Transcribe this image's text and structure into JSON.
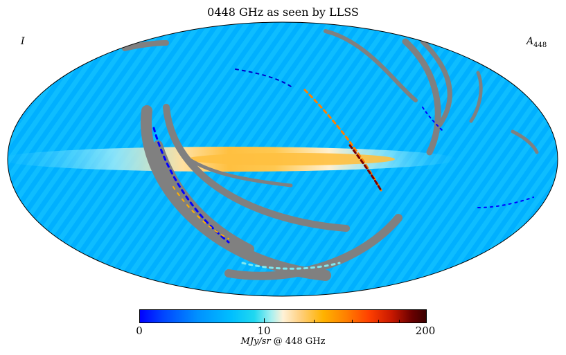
{
  "title": "0448 GHz as seen by LLSS",
  "corner_left": "I",
  "corner_right_main": "A",
  "corner_right_sub": "448",
  "colorbar": {
    "ticks": [
      "0",
      "10",
      "200"
    ],
    "unit_italic": "MJy/sr",
    "unit_rest": " @ 448 GHz"
  },
  "colors": {
    "background": "#00b4ff",
    "masked": "#808080",
    "plane": "#ffc040"
  }
}
